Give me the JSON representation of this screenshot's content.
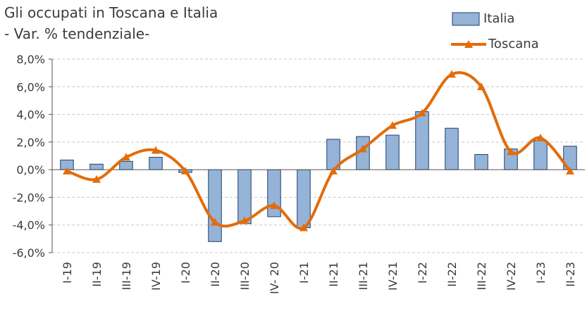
{
  "chart_data": {
    "type": "bar+line",
    "title": [
      "Gli occupati in Toscana e Italia",
      "- Var. % tendenziale-"
    ],
    "categories": [
      "I-19",
      "II-19",
      "III-19",
      "IV-19",
      "I-20",
      "II-20",
      "III-20",
      "IV- 20",
      "I-21",
      "II-21",
      "III-21",
      "IV-21",
      "I-22",
      "II-22",
      "III-22",
      "IV-22",
      "I-23",
      "II-23"
    ],
    "series": [
      {
        "name": "Italia",
        "type": "bar",
        "values": [
          0.7,
          0.4,
          0.6,
          0.9,
          -0.2,
          -5.2,
          -3.9,
          -3.4,
          -4.2,
          2.2,
          2.4,
          2.5,
          4.2,
          3.0,
          1.1,
          1.5,
          2.1,
          1.7
        ]
      },
      {
        "name": "Toscana",
        "type": "line",
        "values": [
          -0.1,
          -0.7,
          0.9,
          1.4,
          -0.1,
          -3.8,
          -3.7,
          -2.6,
          -4.2,
          -0.1,
          1.5,
          3.2,
          4.1,
          6.9,
          6.0,
          1.3,
          2.3,
          -0.1
        ]
      }
    ],
    "yticks": [
      "8,0%",
      "6,0%",
      "4,0%",
      "2,0%",
      "0,0%",
      "-2,0%",
      "-4,0%",
      "-6,0%"
    ],
    "ylim": [
      -6,
      8
    ],
    "grid": true,
    "legend_position": "top-right"
  },
  "colors": {
    "bar_fill": "#95b3d7",
    "bar_stroke": "#1f3f6e",
    "line": "#e36c0a",
    "grid": "#c8c8c8",
    "axis": "#555555",
    "text": "#3b3b3b"
  }
}
